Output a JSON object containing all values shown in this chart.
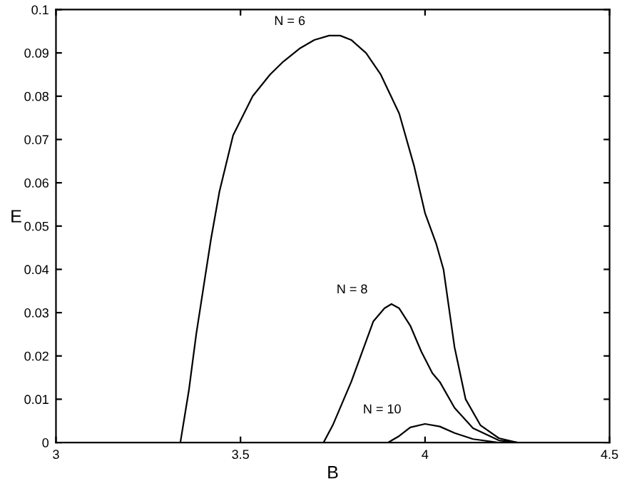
{
  "chart_data": {
    "type": "line",
    "xlabel": "B",
    "ylabel": "E",
    "xlim": [
      3,
      4.5
    ],
    "ylim": [
      0,
      0.1
    ],
    "xticks": [
      3,
      3.5,
      4,
      4.5
    ],
    "yticks": [
      0,
      0.01,
      0.02,
      0.03,
      0.04,
      0.05,
      0.06,
      0.07,
      0.08,
      0.09,
      0.1
    ],
    "grid": false,
    "legend": false,
    "marker": "none",
    "line_style": "solid",
    "series": [
      {
        "name": "N = 6",
        "color": "#000000",
        "x": [
          3.337,
          3.36,
          3.38,
          3.4,
          3.42,
          3.443,
          3.48,
          3.533,
          3.58,
          3.616,
          3.66,
          3.7,
          3.74,
          3.77,
          3.8,
          3.84,
          3.88,
          3.93,
          3.97,
          4.0,
          4.03,
          4.05,
          4.08,
          4.11,
          4.15,
          4.2,
          4.25
        ],
        "values": [
          0,
          0.012,
          0.025,
          0.036,
          0.047,
          0.058,
          0.071,
          0.08,
          0.085,
          0.088,
          0.091,
          0.093,
          0.094,
          0.094,
          0.093,
          0.09,
          0.085,
          0.076,
          0.064,
          0.053,
          0.046,
          0.04,
          0.022,
          0.01,
          0.004,
          0.001,
          0
        ]
      },
      {
        "name": "N = 8",
        "color": "#000000",
        "x": [
          3.725,
          3.75,
          3.78,
          3.8,
          3.83,
          3.86,
          3.89,
          3.909,
          3.93,
          3.96,
          3.99,
          4.02,
          4.04,
          4.08,
          4.13,
          4.2,
          4.25
        ],
        "values": [
          0,
          0.004,
          0.01,
          0.014,
          0.021,
          0.028,
          0.031,
          0.032,
          0.031,
          0.027,
          0.021,
          0.016,
          0.014,
          0.008,
          0.0033,
          0.0005,
          0
        ]
      },
      {
        "name": "N = 10",
        "color": "#000000",
        "x": [
          3.9,
          3.93,
          3.96,
          4.0,
          4.04,
          4.08,
          4.13,
          4.2
        ],
        "values": [
          0,
          0.0015,
          0.0035,
          0.0043,
          0.0037,
          0.0022,
          0.0008,
          0
        ]
      }
    ]
  }
}
